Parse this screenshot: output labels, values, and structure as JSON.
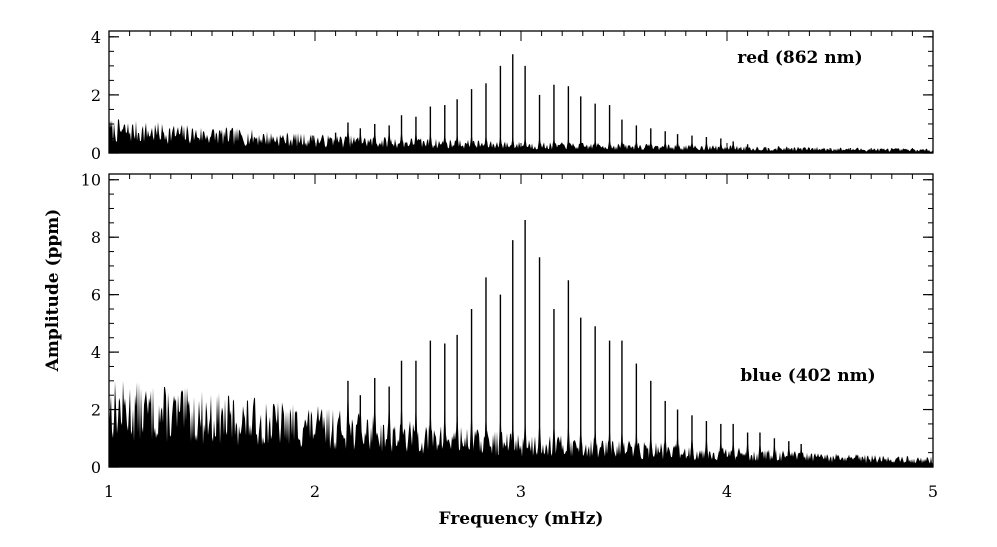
{
  "chart_data": [
    {
      "type": "area",
      "panel": "top",
      "label": "red (862 nm)",
      "xlim": [
        1,
        5
      ],
      "ylim": [
        0,
        4.2
      ],
      "yticks": [
        0,
        2,
        4
      ],
      "background": {
        "x": [
          1.0,
          2.0,
          3.0,
          4.0,
          5.0
        ],
        "y": [
          1.0,
          0.55,
          0.33,
          0.22,
          0.12
        ]
      },
      "peaks": {
        "x": [
          1.99,
          2.1,
          2.16,
          2.22,
          2.29,
          2.36,
          2.42,
          2.49,
          2.56,
          2.63,
          2.69,
          2.76,
          2.83,
          2.9,
          2.96,
          3.02,
          3.09,
          3.16,
          3.23,
          3.29,
          3.36,
          3.43,
          3.49,
          3.56,
          3.63,
          3.7,
          3.76,
          3.83,
          3.9,
          3.97,
          4.03,
          4.1
        ],
        "y": [
          0.6,
          0.7,
          1.05,
          0.85,
          1.0,
          0.95,
          1.3,
          1.25,
          1.6,
          1.65,
          1.85,
          2.2,
          2.4,
          3.0,
          3.4,
          3.0,
          2.0,
          2.35,
          2.3,
          1.95,
          1.7,
          1.65,
          1.15,
          0.95,
          0.85,
          0.75,
          0.65,
          0.6,
          0.55,
          0.5,
          0.4,
          0.3
        ]
      }
    },
    {
      "type": "area",
      "panel": "bottom",
      "label": "blue (402 nm)",
      "xlim": [
        1,
        5
      ],
      "ylim": [
        0,
        10.2
      ],
      "yticks": [
        0,
        2,
        4,
        6,
        8,
        10
      ],
      "xticks": [
        1,
        2,
        3,
        4,
        5
      ],
      "background": {
        "x": [
          1.0,
          1.5,
          2.0,
          2.5,
          3.0,
          3.5,
          4.0,
          4.5,
          5.0
        ],
        "y": [
          2.6,
          2.2,
          1.8,
          1.3,
          1.0,
          0.8,
          0.6,
          0.4,
          0.3
        ]
      },
      "peaks": {
        "x": [
          2.16,
          2.22,
          2.29,
          2.36,
          2.42,
          2.49,
          2.56,
          2.63,
          2.69,
          2.76,
          2.83,
          2.9,
          2.96,
          3.02,
          3.09,
          3.16,
          3.23,
          3.29,
          3.36,
          3.43,
          3.49,
          3.56,
          3.63,
          3.7,
          3.76,
          3.83,
          3.9,
          3.97,
          4.03,
          4.1,
          4.16,
          4.23,
          4.3,
          4.36
        ],
        "y": [
          3.0,
          2.5,
          3.1,
          2.8,
          3.7,
          3.7,
          4.4,
          4.3,
          4.6,
          5.5,
          6.6,
          6.0,
          7.9,
          8.6,
          7.3,
          5.5,
          6.5,
          5.2,
          4.9,
          4.4,
          4.4,
          3.6,
          3.0,
          2.3,
          2.0,
          1.8,
          1.6,
          1.5,
          1.5,
          1.2,
          1.2,
          1.0,
          0.9,
          0.8
        ]
      }
    }
  ],
  "axes": {
    "xlabel": "Frequency (mHz)",
    "ylabel": "Amplitude (ppm)"
  }
}
